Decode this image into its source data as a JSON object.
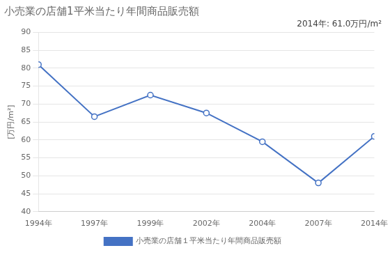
{
  "chart_data": {
    "type": "line",
    "title": "小売業の店舗1平米当たり年間商品販売額",
    "ylabel": "[万円/m²]",
    "annotation": "2014年: 61.0万円/m²",
    "categories": [
      "1994年",
      "1997年",
      "1999年",
      "2002年",
      "2004年",
      "2007年",
      "2014年"
    ],
    "series": [
      {
        "name": "小売業の店舗１平米当たり年間商品販売額",
        "color": "#4472C4",
        "values": [
          81.0,
          66.5,
          72.5,
          67.5,
          59.5,
          48.0,
          61.0
        ]
      }
    ],
    "ylim": [
      40,
      90
    ],
    "yticks": [
      40,
      45,
      50,
      55,
      60,
      65,
      70,
      75,
      80,
      85,
      90
    ],
    "grid": true,
    "legend": "bottom",
    "marker": "circle"
  }
}
